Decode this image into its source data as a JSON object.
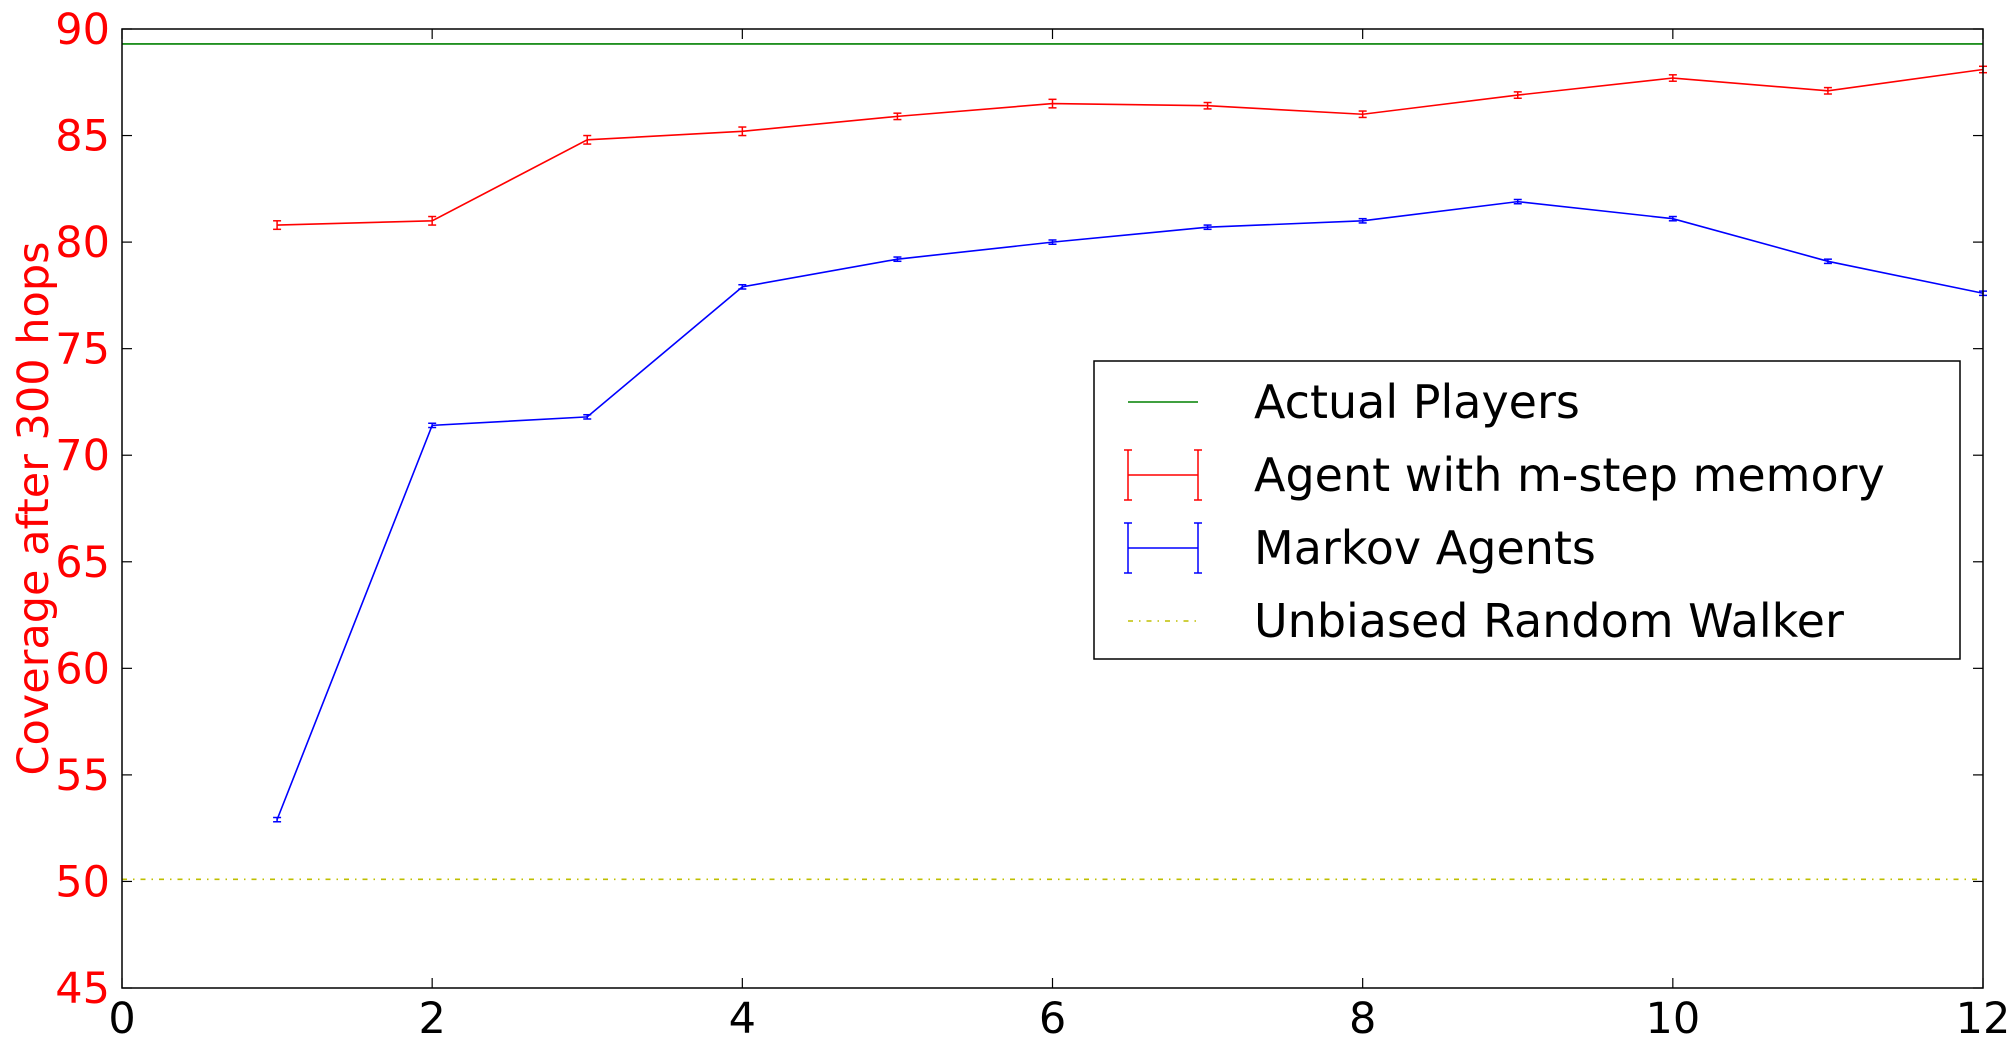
{
  "chart_data": {
    "type": "line",
    "title": "",
    "xlabel": "",
    "ylabel": "Coverage after 300 hops",
    "xlim": [
      0,
      12
    ],
    "ylim": [
      45,
      90
    ],
    "xticks": [
      "0",
      "2",
      "4",
      "6",
      "8",
      "10",
      "12"
    ],
    "yticks": [
      "45",
      "50",
      "55",
      "60",
      "65",
      "70",
      "75",
      "80",
      "85",
      "90"
    ],
    "grid": false,
    "legend_position": "center-right",
    "colors": {
      "ylabel": "#ff0000",
      "ytick": "#ff0000",
      "xtick": "#000000"
    },
    "series": [
      {
        "name": "Actual Players",
        "color": "#008000",
        "style": "solid",
        "kind": "hline",
        "y": 89.3
      },
      {
        "name": "Agent with m-step memory",
        "color": "#ff0000",
        "style": "solid",
        "kind": "errorbar",
        "x": [
          1,
          2,
          3,
          4,
          5,
          6,
          7,
          8,
          9,
          10,
          11,
          12
        ],
        "y": [
          80.8,
          81.0,
          84.8,
          85.2,
          85.9,
          86.5,
          86.4,
          86.0,
          86.9,
          87.7,
          87.1,
          88.1
        ],
        "err": [
          0.2,
          0.2,
          0.2,
          0.2,
          0.15,
          0.2,
          0.15,
          0.15,
          0.15,
          0.15,
          0.15,
          0.15
        ]
      },
      {
        "name": "Markov Agents",
        "color": "#0000ff",
        "style": "solid",
        "kind": "errorbar",
        "x": [
          1,
          2,
          3,
          4,
          5,
          6,
          7,
          8,
          9,
          10,
          11,
          12
        ],
        "y": [
          52.9,
          71.4,
          71.8,
          77.9,
          79.2,
          80.0,
          80.7,
          81.0,
          81.9,
          81.1,
          79.1,
          77.6
        ],
        "err": [
          0.1,
          0.1,
          0.1,
          0.1,
          0.1,
          0.1,
          0.1,
          0.1,
          0.1,
          0.1,
          0.1,
          0.1
        ]
      },
      {
        "name": "Unbiased Random Walker",
        "color": "#bfbf00",
        "style": "dashdot",
        "kind": "hline",
        "y": 50.1
      }
    ]
  }
}
